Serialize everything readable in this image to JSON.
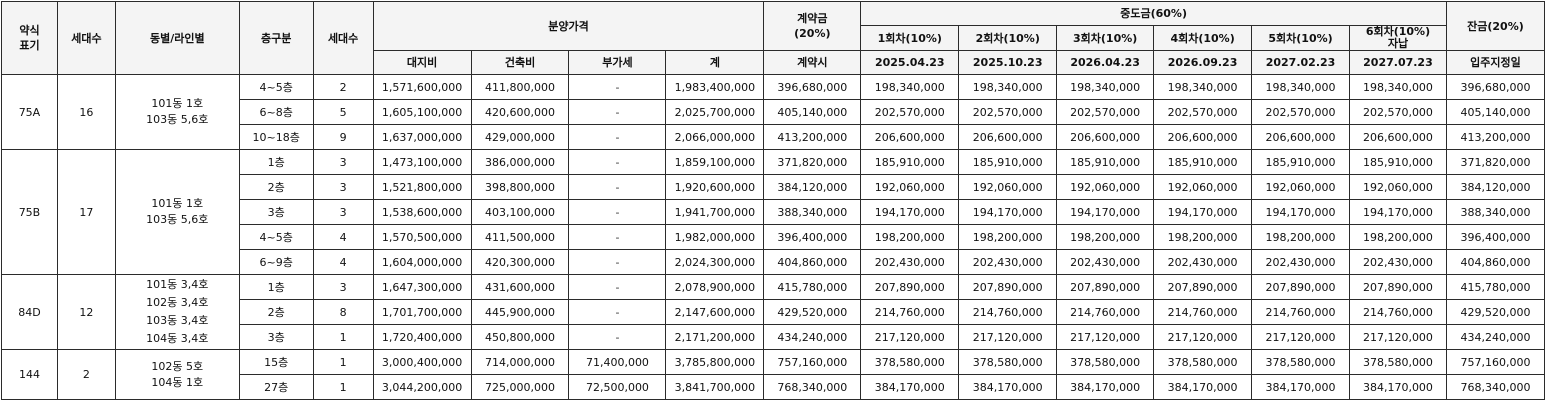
{
  "headers": {
    "type_label": "약식\n표기",
    "units_label": "세대수",
    "dong_label": "동별/라인별",
    "floor_label": "층구분",
    "units_label2": "세대수",
    "price_group": "분양가격",
    "land": "대지비",
    "building": "건축비",
    "vat": "부가세",
    "total": "계",
    "deposit_title": "계약금\n(20%)",
    "deposit_sub": "계약시",
    "interim_group": "중도금(60%)",
    "interim": [
      {
        "label": "1회차(10%)",
        "date": "2025.04.23"
      },
      {
        "label": "2회차(10%)",
        "date": "2025.10.23"
      },
      {
        "label": "3회차(10%)",
        "date": "2026.04.23"
      },
      {
        "label": "4회차(10%)",
        "date": "2026.09.23"
      },
      {
        "label": "5회차(10%)",
        "date": "2027.02.23"
      },
      {
        "label": "6회차(10%)\n자납",
        "date": "2027.07.23"
      }
    ],
    "balance_title": "잔금(20%)",
    "balance_sub": "입주지정일"
  },
  "groups": [
    {
      "type": "75A",
      "units": "16",
      "dong": "101동 1호\n103동 5,6호",
      "rows": [
        {
          "floor": "4~5층",
          "units": "2",
          "land": "1,571,600,000",
          "building": "411,800,000",
          "vat": "-",
          "total": "1,983,400,000",
          "deposit": "396,680,000",
          "i1": "198,340,000",
          "i2": "198,340,000",
          "i3": "198,340,000",
          "i4": "198,340,000",
          "i5": "198,340,000",
          "i6": "198,340,000",
          "balance": "396,680,000"
        },
        {
          "floor": "6~8층",
          "units": "5",
          "land": "1,605,100,000",
          "building": "420,600,000",
          "vat": "-",
          "total": "2,025,700,000",
          "deposit": "405,140,000",
          "i1": "202,570,000",
          "i2": "202,570,000",
          "i3": "202,570,000",
          "i4": "202,570,000",
          "i5": "202,570,000",
          "i6": "202,570,000",
          "balance": "405,140,000"
        },
        {
          "floor": "10~18층",
          "units": "9",
          "land": "1,637,000,000",
          "building": "429,000,000",
          "vat": "-",
          "total": "2,066,000,000",
          "deposit": "413,200,000",
          "i1": "206,600,000",
          "i2": "206,600,000",
          "i3": "206,600,000",
          "i4": "206,600,000",
          "i5": "206,600,000",
          "i6": "206,600,000",
          "balance": "413,200,000"
        }
      ]
    },
    {
      "type": "75B",
      "units": "17",
      "dong": "101동 1호\n103동 5,6호",
      "rows": [
        {
          "floor": "1층",
          "units": "3",
          "land": "1,473,100,000",
          "building": "386,000,000",
          "vat": "-",
          "total": "1,859,100,000",
          "deposit": "371,820,000",
          "i1": "185,910,000",
          "i2": "185,910,000",
          "i3": "185,910,000",
          "i4": "185,910,000",
          "i5": "185,910,000",
          "i6": "185,910,000",
          "balance": "371,820,000"
        },
        {
          "floor": "2층",
          "units": "3",
          "land": "1,521,800,000",
          "building": "398,800,000",
          "vat": "-",
          "total": "1,920,600,000",
          "deposit": "384,120,000",
          "i1": "192,060,000",
          "i2": "192,060,000",
          "i3": "192,060,000",
          "i4": "192,060,000",
          "i5": "192,060,000",
          "i6": "192,060,000",
          "balance": "384,120,000"
        },
        {
          "floor": "3층",
          "units": "3",
          "land": "1,538,600,000",
          "building": "403,100,000",
          "vat": "-",
          "total": "1,941,700,000",
          "deposit": "388,340,000",
          "i1": "194,170,000",
          "i2": "194,170,000",
          "i3": "194,170,000",
          "i4": "194,170,000",
          "i5": "194,170,000",
          "i6": "194,170,000",
          "balance": "388,340,000"
        },
        {
          "floor": "4~5층",
          "units": "4",
          "land": "1,570,500,000",
          "building": "411,500,000",
          "vat": "-",
          "total": "1,982,000,000",
          "deposit": "396,400,000",
          "i1": "198,200,000",
          "i2": "198,200,000",
          "i3": "198,200,000",
          "i4": "198,200,000",
          "i5": "198,200,000",
          "i6": "198,200,000",
          "balance": "396,400,000"
        },
        {
          "floor": "6~9층",
          "units": "4",
          "land": "1,604,000,000",
          "building": "420,300,000",
          "vat": "-",
          "total": "2,024,300,000",
          "deposit": "404,860,000",
          "i1": "202,430,000",
          "i2": "202,430,000",
          "i3": "202,430,000",
          "i4": "202,430,000",
          "i5": "202,430,000",
          "i6": "202,430,000",
          "balance": "404,860,000"
        }
      ]
    },
    {
      "type": "84D",
      "units": "12",
      "dong": "101동 3,4호\n102동 3,4호\n103동 3,4호\n104동 3,4호",
      "rows": [
        {
          "floor": "1층",
          "units": "3",
          "land": "1,647,300,000",
          "building": "431,600,000",
          "vat": "-",
          "total": "2,078,900,000",
          "deposit": "415,780,000",
          "i1": "207,890,000",
          "i2": "207,890,000",
          "i3": "207,890,000",
          "i4": "207,890,000",
          "i5": "207,890,000",
          "i6": "207,890,000",
          "balance": "415,780,000"
        },
        {
          "floor": "2층",
          "units": "8",
          "land": "1,701,700,000",
          "building": "445,900,000",
          "vat": "-",
          "total": "2,147,600,000",
          "deposit": "429,520,000",
          "i1": "214,760,000",
          "i2": "214,760,000",
          "i3": "214,760,000",
          "i4": "214,760,000",
          "i5": "214,760,000",
          "i6": "214,760,000",
          "balance": "429,520,000"
        },
        {
          "floor": "3층",
          "units": "1",
          "land": "1,720,400,000",
          "building": "450,800,000",
          "vat": "-",
          "total": "2,171,200,000",
          "deposit": "434,240,000",
          "i1": "217,120,000",
          "i2": "217,120,000",
          "i3": "217,120,000",
          "i4": "217,120,000",
          "i5": "217,120,000",
          "i6": "217,120,000",
          "balance": "434,240,000"
        }
      ]
    },
    {
      "type": "144",
      "units": "2",
      "dong": "102동 5호\n104동 1호",
      "rows": [
        {
          "floor": "15층",
          "units": "1",
          "land": "3,000,400,000",
          "building": "714,000,000",
          "vat": "71,400,000",
          "total": "3,785,800,000",
          "deposit": "757,160,000",
          "i1": "378,580,000",
          "i2": "378,580,000",
          "i3": "378,580,000",
          "i4": "378,580,000",
          "i5": "378,580,000",
          "i6": "378,580,000",
          "balance": "757,160,000"
        },
        {
          "floor": "27층",
          "units": "1",
          "land": "3,044,200,000",
          "building": "725,000,000",
          "vat": "72,500,000",
          "total": "3,841,700,000",
          "deposit": "768,340,000",
          "i1": "384,170,000",
          "i2": "384,170,000",
          "i3": "384,170,000",
          "i4": "384,170,000",
          "i5": "384,170,000",
          "i6": "384,170,000",
          "balance": "768,340,000"
        }
      ]
    }
  ]
}
